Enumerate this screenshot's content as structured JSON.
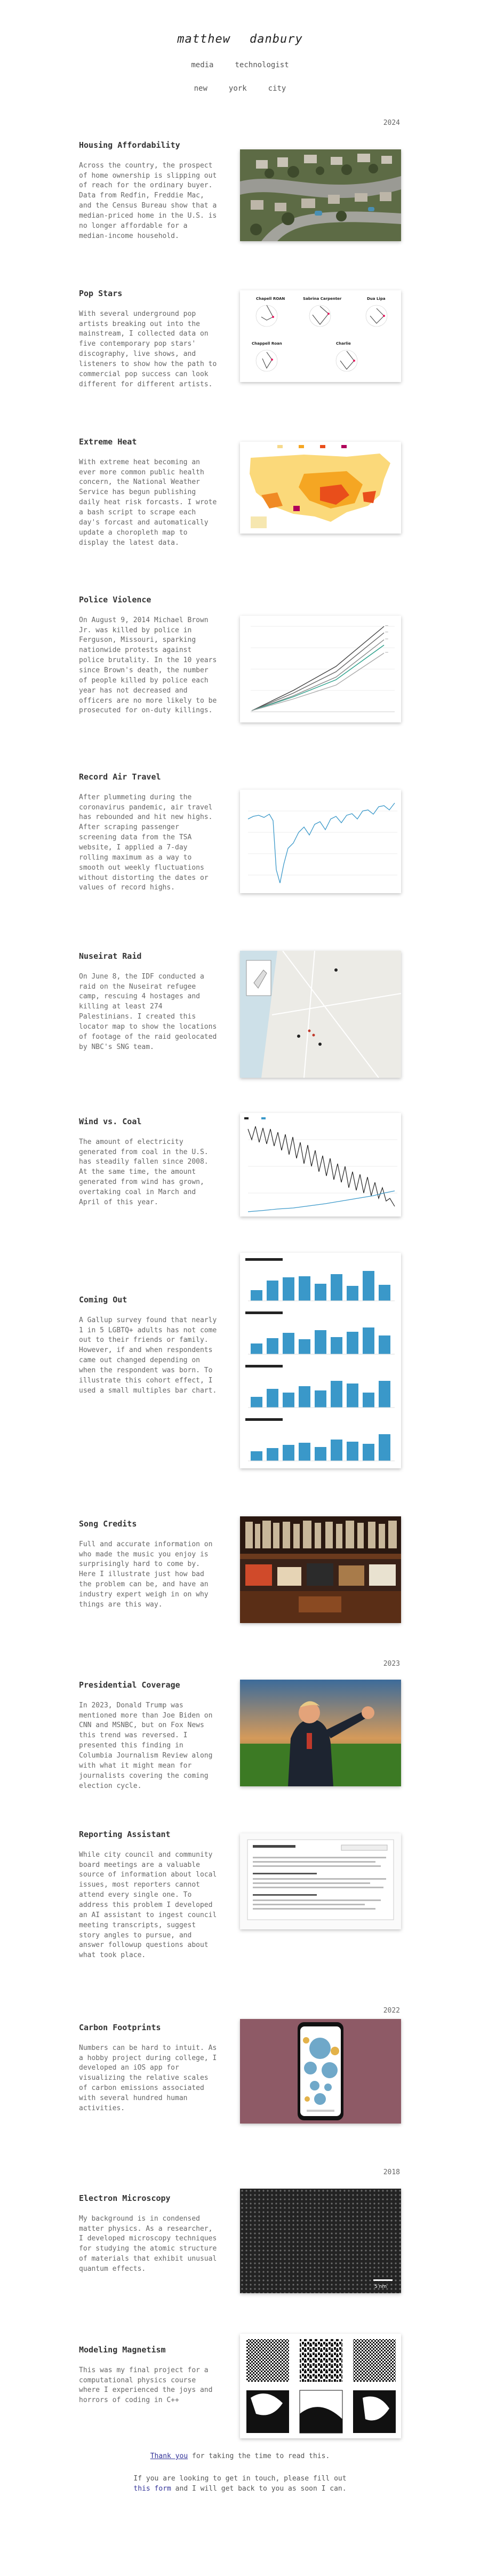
{
  "site": {
    "name_first": "matthew",
    "name_last": "danbury",
    "nav": {
      "media": "media",
      "technologist": "technologist",
      "new": "new",
      "york": "york",
      "city": "city"
    }
  },
  "years": {
    "y2024": "2024",
    "y2023": "2023",
    "y2022": "2022",
    "y2018": "2018"
  },
  "projects": [
    {
      "title": "Housing Affordability",
      "body": "Across the country, the prospect of home ownership is slipping out of reach for the ordinary buyer. Data from Redfin, Freddie Mac, and the Census Bureau show that a median-priced home in the U.S. is no longer affordable for a median-income household.",
      "thumb_icon": "aerial-suburb-photo-icon"
    },
    {
      "title": "Pop Stars",
      "body": "With several underground pop artists breaking out into the mainstream, I collected data on five contemporary pop stars' discography, live shows, and listeners to show how the path to commercial pop success can look different for different artists.",
      "thumb_labels": [
        "Chapell ROAN",
        "Sabrina Carpenter",
        "Dua Lipa",
        "Chappell Roan",
        "Charlie"
      ],
      "thumb_icon": "radar-charts-icon"
    },
    {
      "title": "Extreme Heat",
      "body": "With extreme heat becoming an ever more common public health concern, the National Weather Service has begun publishing daily heat risk forcasts. I wrote a bash script to scrape each day's forcast and automatically update a choropleth map to display the latest data.",
      "thumb_icon": "heat-map-icon"
    },
    {
      "title": "Police Violence",
      "body": "On August 9, 2014 Michael Brown Jr. was killed by police in Ferguson, Missouri, sparking nationwide protests against police brutality. In the 10 years since Brown's death, the number of people killed by police each year has not decreased and officers are no more likely to be prosecuted for on-duty killings.",
      "thumb_icon": "line-chart-icon"
    },
    {
      "title": "Record Air Travel",
      "body": "After plummeting during the coronavirus pandemic, air travel has rebounded and hit new highs. After scraping passenger screening data from the TSA website, I applied a 7-day rolling maximum as a way to smooth out weekly fluctuations without distorting the dates or values of record highs.",
      "thumb_icon": "time-series-icon"
    },
    {
      "title": "Nuseirat Raid",
      "body": "On June 8, the IDF conducted a raid on the Nuseirat refugee camp, rescuing 4 hostages and killing at least 274 Palestinians. I created this locator map to show the locations of footage of the raid geolocated by NBC's SNG team.",
      "thumb_icon": "locator-map-icon"
    },
    {
      "title": "Wind vs. Coal",
      "body": "The amount of electricity generated from coal in the U.S. has steadily fallen since 2008. At the same time, the amount generated from wind has grown, overtaking coal in March and April of this year.",
      "thumb_icon": "wind-coal-chart-icon"
    },
    {
      "title": "Coming Out",
      "body": "A Gallup survey found that nearly 1 in 5 LGBTQ+ adults has not come out to their friends or family. However, if and when respondents came out changed depending on when the respondent was born. To illustrate this cohort effect, I used a small multiples bar chart.",
      "thumb_icon": "small-multiples-icon"
    },
    {
      "title": "Song Credits",
      "body": "Full and accurate information on who made the music you enjoy is surprisingly hard to come by. Here I illustrate just how bad the problem can be, and have an industry expert weigh in on why things are this way.",
      "thumb_icon": "record-store-photo-icon"
    },
    {
      "title": "Presidential Coverage",
      "body": "In 2023, Donald Trump was mentioned more than Joe Biden on CNN and MSNBC, but on Fox News this trend was reversed. I presented this finding in Columbia Journalism Review along with what it might mean for journalists covering the coming election cycle.",
      "thumb_icon": "rally-photo-icon"
    },
    {
      "title": "Reporting Assistant",
      "body": "While city council and community board meetings are a valuable source of information about local issues, most reporters cannot attend every single one. To address this problem I developed an AI assistant to ingest council meeting transcripts, suggest story angles to pursue, and answer followup questions about what took place.",
      "thumb_icon": "document-screenshot-icon"
    },
    {
      "title": "Carbon Footprints",
      "body": "Numbers can be hard to intuit. As a hobby project during college, I developed an iOS app for visualizing the relative scales of carbon emissions associated with several hundred human activities.",
      "thumb_icon": "phone-app-icon"
    },
    {
      "title": "Electron Microscopy",
      "body": "My background is in condensed matter physics. As a researcher, I developed microscopy techniques for studying the atomic structure of materials that exhibit unusual quantum effects.",
      "thumb_scale": "5 nm",
      "thumb_icon": "atomic-lattice-icon"
    },
    {
      "title": "Modeling Magnetism",
      "body": "This was my final project for a computational physics course where I experienced the joys and horrors of coding in C++",
      "thumb_icon": "ising-model-icon"
    }
  ],
  "footer": {
    "thanks_link": "Thank you",
    "thanks_rest": " for taking the time to read this.",
    "contact_pre": "If you are looking to get in touch, please fill out ",
    "contact_link": "this form",
    "contact_post": " and I will get back to you as soon I can."
  },
  "colors": {
    "link": "#333399",
    "heading": "#333333",
    "body": "#666666"
  }
}
